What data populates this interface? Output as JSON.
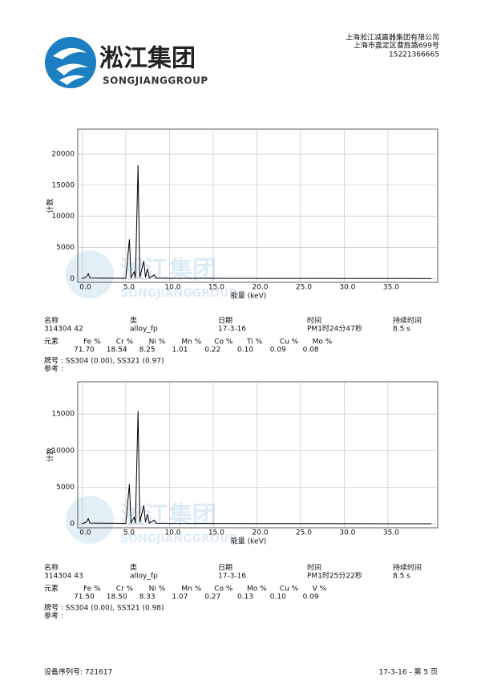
{
  "header": {
    "company": "上海淞江减震器集团有限公司",
    "address": "上海市嘉定区曹胜路699号",
    "phone": "15221366665",
    "logo_cn": "淞江集团",
    "logo_en": "SONGJIANGGROUP"
  },
  "watermark": {
    "cn": "淞江集团",
    "en": "SONGJIANGGROUP"
  },
  "chart_data": [
    {
      "type": "line",
      "y_label": "计数",
      "x_label": "能量 (keV)",
      "color": "#000000",
      "grid": true,
      "xlim": [
        -0.5,
        40.7
      ],
      "ylim": [
        -600,
        24000
      ],
      "xticks": [
        {
          "value": 0,
          "label": "0.0"
        },
        {
          "value": 5,
          "label": "5.0"
        },
        {
          "value": 10,
          "label": "10.0"
        },
        {
          "value": 15,
          "label": "15.0"
        },
        {
          "value": 20,
          "label": "20.0"
        },
        {
          "value": 25,
          "label": "25.0"
        },
        {
          "value": 30,
          "label": "30.0"
        },
        {
          "value": 35,
          "label": "35.0"
        }
      ],
      "yticks": [
        0,
        5000,
        10000,
        15000,
        20000
      ],
      "x": [
        0,
        0.5,
        0.7,
        0.9,
        5.0,
        5.41,
        5.6,
        5.95,
        6.1,
        6.4,
        6.6,
        7.06,
        7.25,
        7.47,
        7.7,
        8.26,
        8.5,
        20,
        40
      ],
      "values": [
        0,
        300,
        800,
        100,
        50,
        6300,
        100,
        1100,
        100,
        18200,
        200,
        2800,
        200,
        1600,
        100,
        600,
        50,
        30,
        0
      ]
    },
    {
      "type": "line",
      "y_label": "计数",
      "x_label": "能量 (keV)",
      "color": "#000000",
      "grid": true,
      "xlim": [
        -0.5,
        40.7
      ],
      "ylim": [
        -550,
        19400
      ],
      "xticks": [
        {
          "value": 0,
          "label": "0.0"
        },
        {
          "value": 5,
          "label": "5.0"
        },
        {
          "value": 10,
          "label": "10.0"
        },
        {
          "value": 15,
          "label": "15.0"
        },
        {
          "value": 20,
          "label": "20.0"
        },
        {
          "value": 25,
          "label": "25.0"
        },
        {
          "value": 30,
          "label": "30.0"
        },
        {
          "value": 35,
          "label": "35.0"
        }
      ],
      "yticks": [
        0,
        5000,
        10000,
        15000
      ],
      "x": [
        0,
        0.5,
        0.7,
        0.9,
        5.0,
        5.41,
        5.6,
        5.95,
        6.1,
        6.4,
        6.6,
        7.06,
        7.25,
        7.47,
        7.7,
        8.26,
        8.5,
        20,
        40
      ],
      "values": [
        0,
        250,
        700,
        100,
        50,
        5400,
        100,
        900,
        100,
        15400,
        200,
        2500,
        200,
        1300,
        100,
        500,
        50,
        30,
        0
      ]
    }
  ],
  "samples": [
    {
      "header": [
        "名称",
        "类",
        "日期",
        "时间",
        "持续时间"
      ],
      "row": [
        "314304 42",
        "alloy_fp",
        "17-3-16",
        "PM1时24分47秒",
        "8.5 s"
      ],
      "elements_label": "元素",
      "elements": [
        {
          "name": "Fe %",
          "value": "71.70"
        },
        {
          "name": "Cr %",
          "value": "18.54"
        },
        {
          "name": "Ni %",
          "value": "8.25"
        },
        {
          "name": "Mn %",
          "value": "1.01"
        },
        {
          "name": "Co %",
          "value": "0.22"
        },
        {
          "name": "Ti %",
          "value": "0.10"
        },
        {
          "name": "Cu %",
          "value": "0.09"
        },
        {
          "name": "Mo %",
          "value": "0.08"
        }
      ],
      "grade": "牌号 : SS304 (0.00), SS321 (0.97)",
      "reference": "参考 :"
    },
    {
      "header": [
        "名称",
        "类",
        "日期",
        "时间",
        "持续时间"
      ],
      "row": [
        "314304 43",
        "alloy_fp",
        "17-3-16",
        "PM1时25分22秒",
        "8.5 s"
      ],
      "elements_label": "元素",
      "elements": [
        {
          "name": "Fe %",
          "value": "71.50"
        },
        {
          "name": "Cr %",
          "value": "18.50"
        },
        {
          "name": "Ni %",
          "value": "8.33"
        },
        {
          "name": "Mn %",
          "value": "1.07"
        },
        {
          "name": "Co %",
          "value": "0.27"
        },
        {
          "name": "Mo %",
          "value": "0.13"
        },
        {
          "name": "Cu %",
          "value": "0.10"
        },
        {
          "name": "V %",
          "value": "0.09"
        }
      ],
      "grade": "牌号 : SS304 (0.00), SS321 (0.98)",
      "reference": "参考 :"
    }
  ],
  "footer": {
    "serial": "设备序列号: 721617",
    "page": "17-3-16 - 第 5 页"
  }
}
